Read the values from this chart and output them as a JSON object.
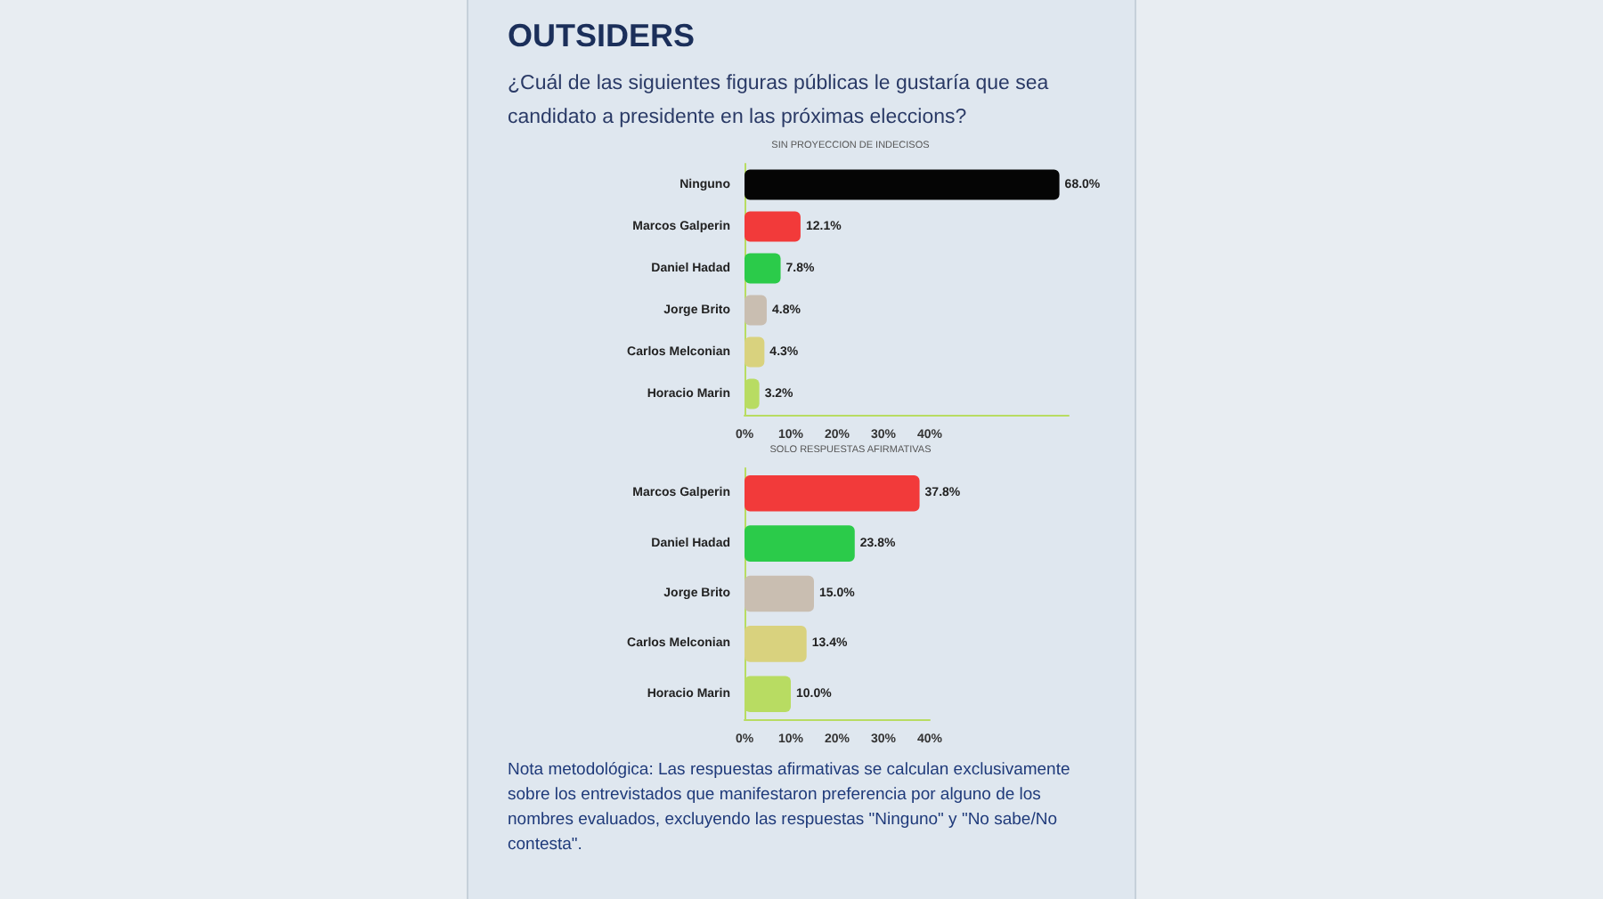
{
  "chart_data": [
    {
      "type": "bar",
      "orientation": "horizontal",
      "title": "OUTSIDERS",
      "subtitle": "¿Cuál de las siguientes figuras públicas le gustaría que sea candidato a presidente en las próximas eleccions?",
      "annotations": [
        "SIN PROYECCION DE INDECISOS"
      ],
      "categories": [
        "Ninguno",
        "Marcos Galperin",
        "Daniel Hadad",
        "Jorge Brito",
        "Carlos Melconian",
        "Horacio Marin"
      ],
      "values": [
        68.0,
        12.1,
        7.8,
        4.8,
        4.3,
        3.2
      ],
      "value_labels": [
        "68.0%",
        "12.1%",
        "7.8%",
        "4.8%",
        "4.3%",
        "3.2%"
      ],
      "colors": [
        "#050505",
        "#f23a3a",
        "#2bcb4a",
        "#c9beb1",
        "#d9d27e",
        "#b8dc62"
      ],
      "xlim": [
        0,
        70
      ],
      "xticks": [
        {
          "value": 0,
          "label": "0%"
        },
        {
          "value": 10,
          "label": "10%"
        },
        {
          "value": 20,
          "label": "20%"
        },
        {
          "value": 30,
          "label": "30%"
        },
        {
          "value": 40,
          "label": "40%"
        }
      ],
      "grid": false
    },
    {
      "type": "bar",
      "orientation": "horizontal",
      "title": "SOLO RESPUESTAS AFIRMATIVAS",
      "annotations": [
        "Nota metodológica: Las respuestas afirmativas se calculan exclusivamente sobre los entrevistados que manifestaron preferencia por alguno de los nombres evaluados, excluyendo las respuestas \"Ninguno\" y \"No sabe/No contesta\"."
      ],
      "categories": [
        "Marcos Galperin",
        "Daniel Hadad",
        "Jorge Brito",
        "Carlos Melconian",
        "Horacio Marin"
      ],
      "values": [
        37.8,
        23.8,
        15.0,
        13.4,
        10.0
      ],
      "value_labels": [
        "37.8%",
        "23.8%",
        "15.0%",
        "13.4%",
        "10.0%"
      ],
      "colors": [
        "#f23a3a",
        "#2bcb4a",
        "#c9beb1",
        "#d9d27e",
        "#b8dc62"
      ],
      "xlim": [
        0,
        40
      ],
      "xticks": [
        {
          "value": 0,
          "label": "0%"
        },
        {
          "value": 10,
          "label": "10%"
        },
        {
          "value": 20,
          "label": "20%"
        },
        {
          "value": 30,
          "label": "30%"
        },
        {
          "value": 40,
          "label": "40%"
        }
      ],
      "grid": false
    }
  ]
}
